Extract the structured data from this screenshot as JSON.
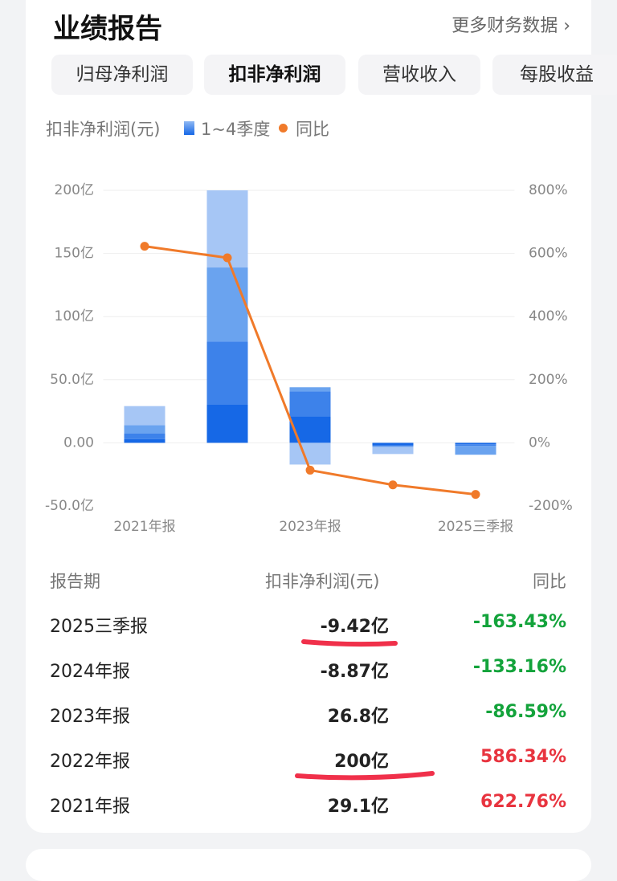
{
  "header": {
    "title": "业绩报告",
    "link": "更多财务数据 ›"
  },
  "tabs": [
    "归母净利润",
    "扣非净利润",
    "营收收入",
    "每股收益"
  ],
  "selected_tab": 1,
  "chart_data": {
    "type": "stacked-bar-line",
    "y_label": "扣非净利润(元)",
    "bar_legend": "1~4季度",
    "categories": [
      "2021年报",
      null,
      "2023年报",
      null,
      "2025三季报"
    ],
    "series": [
      {
        "color": "#1668e6",
        "values": [
          3,
          30.6,
          21,
          -2.2,
          -1.2
        ]
      },
      {
        "color": "#3d82ea",
        "values": [
          4.5,
          49.7,
          19.7,
          -0.5,
          -1.3
        ]
      },
      {
        "color": "#6aa3ef",
        "values": [
          6.5,
          58.6,
          3.3,
          -0.6,
          -6.92
        ]
      },
      {
        "color": "#a6c6f5",
        "values": [
          15.1,
          61.1,
          -17.2,
          -5.57,
          null
        ]
      },
      {
        "name": "同比",
        "color": "#f07a2a",
        "axis": "y2",
        "values": [
          622.76,
          586.34,
          -86.59,
          -133.16,
          -163.43
        ]
      }
    ],
    "ylim": [
      -50,
      200
    ],
    "yticks": [
      {
        "value": -50,
        "label": "-50.0亿"
      },
      {
        "value": 0,
        "label": "0.00"
      },
      {
        "value": 50,
        "label": "50.0亿"
      },
      {
        "value": 100,
        "label": "100亿"
      },
      {
        "value": 150,
        "label": "150亿"
      },
      {
        "value": 200,
        "label": "200亿"
      }
    ],
    "y2lim": [
      -200,
      800
    ],
    "y2ticks": [
      {
        "value": -200,
        "label": "-200%"
      },
      {
        "value": 0,
        "label": "0%"
      },
      {
        "value": 200,
        "label": "200%"
      },
      {
        "value": 400,
        "label": "400%"
      },
      {
        "value": 600,
        "label": "600%"
      },
      {
        "value": 800,
        "label": "800%"
      }
    ],
    "grid": true
  },
  "table": {
    "columns": [
      "报告期",
      "扣非净利润(元)",
      "同比"
    ],
    "rows": [
      [
        "2025三季报",
        "-9.42亿",
        "-163.43%"
      ],
      [
        "2024年报",
        "-8.87亿",
        "-133.16%"
      ],
      [
        "2023年报",
        "26.8亿",
        "-86.59%"
      ],
      [
        "2022年报",
        "200亿",
        "586.34%"
      ],
      [
        "2021年报",
        "29.1亿",
        "622.76%"
      ]
    ]
  }
}
